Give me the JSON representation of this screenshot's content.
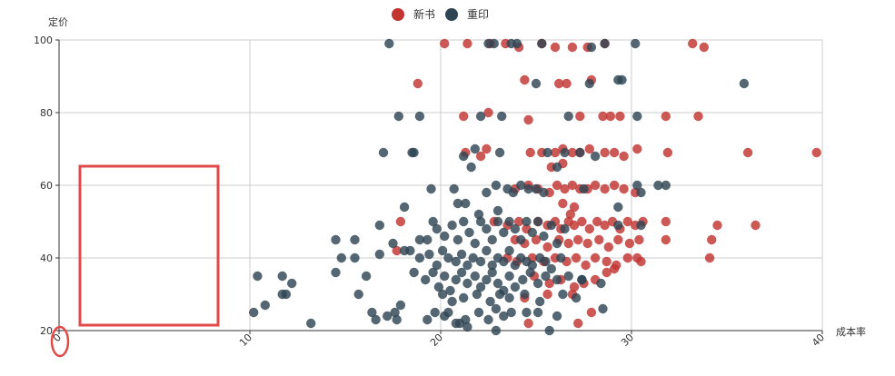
{
  "chart_data": {
    "type": "scatter",
    "xlabel": "成本率",
    "ylabel": "定价",
    "xlim": [
      0,
      40
    ],
    "ylim": [
      20,
      100
    ],
    "x_ticks": [
      "0",
      "10",
      "20",
      "30",
      "40"
    ],
    "y_ticks": [
      "20",
      "40",
      "60",
      "80",
      "100"
    ],
    "grid": true,
    "legend_position": "top-center",
    "series": [
      {
        "name": "新书",
        "color": "#c23531",
        "points": [
          [
            20.2,
            99
          ],
          [
            21.4,
            99
          ],
          [
            22.6,
            99
          ],
          [
            23.4,
            99
          ],
          [
            24.1,
            98
          ],
          [
            25.3,
            99
          ],
          [
            26.0,
            98
          ],
          [
            26.9,
            98
          ],
          [
            27.7,
            98
          ],
          [
            28.6,
            99
          ],
          [
            33.2,
            99
          ],
          [
            33.8,
            98
          ],
          [
            18.8,
            88
          ],
          [
            24.4,
            89
          ],
          [
            26.2,
            88
          ],
          [
            26.6,
            88
          ],
          [
            27.9,
            89
          ],
          [
            24.6,
            78
          ],
          [
            21.2,
            79
          ],
          [
            22.5,
            80
          ],
          [
            27.3,
            79
          ],
          [
            28.5,
            79
          ],
          [
            28.9,
            79
          ],
          [
            29.4,
            79
          ],
          [
            31.8,
            79
          ],
          [
            33.5,
            79
          ],
          [
            21.3,
            69
          ],
          [
            22.1,
            68
          ],
          [
            22.4,
            70
          ],
          [
            24.7,
            69
          ],
          [
            25.3,
            69
          ],
          [
            26.0,
            69
          ],
          [
            26.4,
            70
          ],
          [
            26.9,
            69
          ],
          [
            27.3,
            69
          ],
          [
            27.8,
            70
          ],
          [
            28.6,
            69
          ],
          [
            29.1,
            69
          ],
          [
            29.6,
            68
          ],
          [
            30.3,
            70
          ],
          [
            31.9,
            69
          ],
          [
            36.1,
            69
          ],
          [
            39.7,
            69
          ],
          [
            25.8,
            65
          ],
          [
            26.4,
            66
          ],
          [
            23.9,
            59
          ],
          [
            24.6,
            60
          ],
          [
            25.1,
            59
          ],
          [
            25.7,
            58
          ],
          [
            26.1,
            60
          ],
          [
            26.5,
            59
          ],
          [
            26.9,
            60
          ],
          [
            27.3,
            59
          ],
          [
            27.7,
            59
          ],
          [
            28.1,
            60
          ],
          [
            28.6,
            59
          ],
          [
            29.1,
            60
          ],
          [
            29.6,
            59
          ],
          [
            30.2,
            58
          ],
          [
            26.4,
            55
          ],
          [
            27.0,
            54
          ],
          [
            26.8,
            52
          ],
          [
            17.9,
            50
          ],
          [
            22.8,
            50
          ],
          [
            23.5,
            49
          ],
          [
            24.1,
            50
          ],
          [
            24.5,
            48
          ],
          [
            25.1,
            50
          ],
          [
            25.6,
            49
          ],
          [
            26.0,
            50
          ],
          [
            26.3,
            48
          ],
          [
            26.7,
            50
          ],
          [
            27.0,
            49
          ],
          [
            27.4,
            50
          ],
          [
            27.8,
            48
          ],
          [
            28.2,
            50
          ],
          [
            28.6,
            49
          ],
          [
            29.0,
            50
          ],
          [
            29.4,
            48
          ],
          [
            29.8,
            50
          ],
          [
            30.2,
            49
          ],
          [
            30.6,
            50
          ],
          [
            31.8,
            50
          ],
          [
            34.5,
            49
          ],
          [
            36.5,
            49
          ],
          [
            23.9,
            45
          ],
          [
            24.4,
            44
          ],
          [
            25.0,
            45
          ],
          [
            25.6,
            43
          ],
          [
            26.2,
            45
          ],
          [
            26.7,
            44
          ],
          [
            27.2,
            45
          ],
          [
            27.7,
            44
          ],
          [
            28.3,
            45
          ],
          [
            28.8,
            43
          ],
          [
            29.3,
            45
          ],
          [
            29.9,
            44
          ],
          [
            30.4,
            45
          ],
          [
            31.8,
            45
          ],
          [
            34.2,
            45
          ],
          [
            17.7,
            42
          ],
          [
            23.5,
            40
          ],
          [
            24.0,
            39
          ],
          [
            24.8,
            40
          ],
          [
            25.4,
            39
          ],
          [
            26.0,
            40
          ],
          [
            26.6,
            39
          ],
          [
            27.1,
            40
          ],
          [
            27.6,
            38
          ],
          [
            28.1,
            40
          ],
          [
            28.7,
            39
          ],
          [
            29.2,
            38
          ],
          [
            29.8,
            40
          ],
          [
            30.3,
            40
          ],
          [
            30.5,
            39
          ],
          [
            34.1,
            40
          ],
          [
            24.9,
            35
          ],
          [
            25.7,
            33
          ],
          [
            26.3,
            34
          ],
          [
            27.0,
            32
          ],
          [
            27.5,
            33
          ],
          [
            28.1,
            34
          ],
          [
            28.7,
            36
          ],
          [
            29.1,
            37
          ],
          [
            26.9,
            30
          ],
          [
            25.6,
            30
          ],
          [
            24.4,
            29
          ],
          [
            24.6,
            22
          ],
          [
            27.2,
            22
          ],
          [
            27.9,
            25
          ]
        ]
      },
      {
        "name": "重印",
        "color": "#2f4554",
        "points": [
          [
            17.3,
            99
          ],
          [
            22.5,
            99
          ],
          [
            22.8,
            99
          ],
          [
            23.7,
            99
          ],
          [
            24.0,
            99
          ],
          [
            25.3,
            99
          ],
          [
            27.9,
            98
          ],
          [
            28.6,
            99
          ],
          [
            30.2,
            99
          ],
          [
            25.0,
            88
          ],
          [
            27.8,
            88
          ],
          [
            29.3,
            89
          ],
          [
            29.5,
            89
          ],
          [
            35.9,
            88
          ],
          [
            17.8,
            79
          ],
          [
            18.9,
            79
          ],
          [
            22.1,
            79
          ],
          [
            23.2,
            79
          ],
          [
            26.7,
            79
          ],
          [
            30.3,
            79
          ],
          [
            17.0,
            69
          ],
          [
            18.5,
            69
          ],
          [
            18.6,
            69
          ],
          [
            21.2,
            68
          ],
          [
            21.8,
            70
          ],
          [
            23.1,
            69
          ],
          [
            25.6,
            69
          ],
          [
            26.5,
            69
          ],
          [
            27.3,
            69
          ],
          [
            28.1,
            68
          ],
          [
            21.6,
            65
          ],
          [
            26.1,
            65
          ],
          [
            18.1,
            54
          ],
          [
            19.5,
            59
          ],
          [
            20.7,
            59
          ],
          [
            22.4,
            58
          ],
          [
            22.9,
            60
          ],
          [
            23.5,
            59
          ],
          [
            23.8,
            58
          ],
          [
            24.2,
            60
          ],
          [
            24.6,
            59
          ],
          [
            25.0,
            59
          ],
          [
            25.4,
            58
          ],
          [
            27.5,
            59
          ],
          [
            29.3,
            54
          ],
          [
            30.3,
            60
          ],
          [
            30.5,
            58
          ],
          [
            31.4,
            60
          ],
          [
            31.8,
            60
          ],
          [
            16.8,
            49
          ],
          [
            17.5,
            44
          ],
          [
            18.9,
            45
          ],
          [
            19.3,
            45
          ],
          [
            19.6,
            50
          ],
          [
            19.8,
            48
          ],
          [
            20.2,
            46
          ],
          [
            20.6,
            49
          ],
          [
            20.9,
            45
          ],
          [
            21.2,
            50
          ],
          [
            21.5,
            47
          ],
          [
            21.8,
            44
          ],
          [
            22.1,
            50
          ],
          [
            22.4,
            48
          ],
          [
            22.7,
            45
          ],
          [
            23.0,
            50
          ],
          [
            23.3,
            47
          ],
          [
            23.6,
            50
          ],
          [
            23.9,
            48
          ],
          [
            24.2,
            45
          ],
          [
            24.5,
            50
          ],
          [
            24.8,
            47
          ],
          [
            25.1,
            50
          ],
          [
            25.4,
            46
          ],
          [
            25.8,
            49
          ],
          [
            26.1,
            44
          ],
          [
            26.5,
            48
          ],
          [
            29.3,
            49
          ],
          [
            30.5,
            49
          ],
          [
            22.0,
            52
          ],
          [
            23.0,
            53
          ],
          [
            20.9,
            55
          ],
          [
            21.3,
            55
          ],
          [
            18.1,
            42
          ],
          [
            18.4,
            42
          ],
          [
            18.9,
            40
          ],
          [
            19.4,
            41
          ],
          [
            19.8,
            38
          ],
          [
            20.1,
            42
          ],
          [
            20.4,
            40
          ],
          [
            20.8,
            39
          ],
          [
            21.1,
            41
          ],
          [
            21.4,
            38
          ],
          [
            21.7,
            40
          ],
          [
            22.1,
            39
          ],
          [
            22.4,
            42
          ],
          [
            22.7,
            38
          ],
          [
            23.0,
            40
          ],
          [
            23.3,
            39
          ],
          [
            23.6,
            42
          ],
          [
            23.9,
            38
          ],
          [
            24.2,
            40
          ],
          [
            24.5,
            39
          ],
          [
            24.8,
            38
          ],
          [
            25.2,
            40
          ],
          [
            25.5,
            39
          ],
          [
            25.8,
            37
          ],
          [
            26.3,
            40
          ],
          [
            15.5,
            40
          ],
          [
            16.8,
            41
          ],
          [
            18.6,
            36
          ],
          [
            19.2,
            34
          ],
          [
            19.6,
            36
          ],
          [
            19.9,
            32
          ],
          [
            20.2,
            35
          ],
          [
            20.5,
            31
          ],
          [
            20.8,
            34
          ],
          [
            21.1,
            36
          ],
          [
            21.4,
            33
          ],
          [
            21.8,
            35
          ],
          [
            22.1,
            32
          ],
          [
            22.4,
            34
          ],
          [
            22.7,
            36
          ],
          [
            23.0,
            33
          ],
          [
            23.3,
            31
          ],
          [
            23.6,
            35
          ],
          [
            23.9,
            32
          ],
          [
            24.3,
            34
          ],
          [
            24.7,
            36
          ],
          [
            25.1,
            33
          ],
          [
            25.5,
            35
          ],
          [
            26.1,
            34
          ],
          [
            26.7,
            35
          ],
          [
            27.4,
            34
          ],
          [
            28.4,
            33
          ],
          [
            14.8,
            40
          ],
          [
            14.5,
            45
          ],
          [
            15.5,
            45
          ],
          [
            14.5,
            36
          ],
          [
            16.1,
            35
          ],
          [
            10.4,
            35
          ],
          [
            11.7,
            35
          ],
          [
            12.2,
            33
          ],
          [
            11.7,
            30
          ],
          [
            11.9,
            30
          ],
          [
            15.7,
            30
          ],
          [
            16.4,
            25
          ],
          [
            16.6,
            23
          ],
          [
            17.2,
            24
          ],
          [
            17.6,
            25
          ],
          [
            17.7,
            23
          ],
          [
            17.9,
            27
          ],
          [
            10.2,
            25
          ],
          [
            10.8,
            27
          ],
          [
            13.2,
            22
          ],
          [
            20.1,
            30
          ],
          [
            20.6,
            28
          ],
          [
            21.2,
            29
          ],
          [
            21.9,
            30
          ],
          [
            22.6,
            28
          ],
          [
            23.1,
            30
          ],
          [
            23.6,
            29
          ],
          [
            24.4,
            30
          ],
          [
            25.2,
            28
          ],
          [
            26.4,
            30
          ],
          [
            27.1,
            29
          ],
          [
            27.4,
            34
          ],
          [
            19.7,
            25
          ],
          [
            20.2,
            24
          ],
          [
            20.4,
            25
          ],
          [
            21.0,
            22
          ],
          [
            21.3,
            23
          ],
          [
            22.0,
            25
          ],
          [
            22.5,
            23
          ],
          [
            22.9,
            26
          ],
          [
            23.3,
            24
          ],
          [
            23.7,
            25
          ],
          [
            24.5,
            25
          ],
          [
            25.1,
            25
          ],
          [
            26.1,
            24
          ],
          [
            28.5,
            26
          ],
          [
            19.3,
            23
          ],
          [
            20.8,
            22
          ],
          [
            21.4,
            21
          ],
          [
            22.9,
            20
          ],
          [
            25.7,
            20
          ]
        ]
      }
    ]
  },
  "annotations": {
    "highlight_color": "#e24a4a"
  }
}
